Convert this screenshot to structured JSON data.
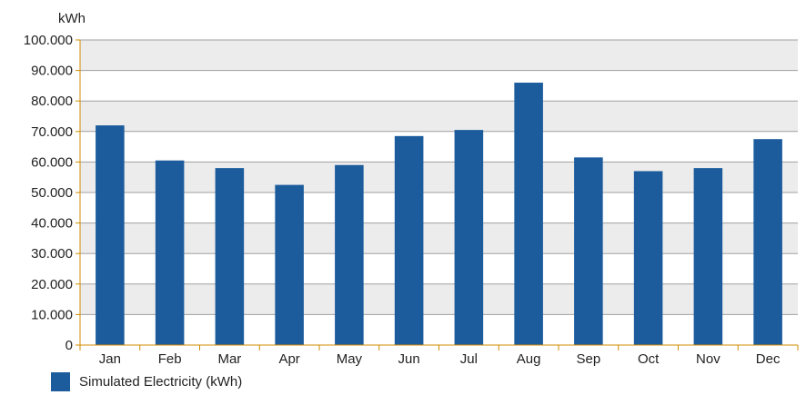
{
  "chart_data": {
    "type": "bar",
    "title": "",
    "xlabel": "",
    "ylabel": "kWh",
    "categories": [
      "Jan",
      "Feb",
      "Mar",
      "Apr",
      "May",
      "Jun",
      "Jul",
      "Aug",
      "Sep",
      "Oct",
      "Nov",
      "Dec"
    ],
    "series": [
      {
        "name": "Simulated Electricity (kWh)",
        "values": [
          72000,
          60500,
          58000,
          52500,
          59000,
          68500,
          70500,
          86000,
          61500,
          57000,
          58000,
          67500
        ],
        "color": "#1c5c9c"
      }
    ],
    "ylim": [
      0,
      100000
    ],
    "yticks": [
      0,
      10000,
      20000,
      30000,
      40000,
      50000,
      60000,
      70000,
      80000,
      90000,
      100000
    ],
    "ytick_labels": [
      "0",
      "10.000",
      "20.000",
      "30.000",
      "40.000",
      "50.000",
      "60.000",
      "70.000",
      "80.000",
      "90.000",
      "100.000"
    ],
    "grid": true,
    "legend_position": "bottom-left",
    "colors": {
      "bar": "#1c5c9c",
      "band_light": "#ffffff",
      "band_dark": "#ececec",
      "gridline": "#a0a0a0",
      "axis": "#d08c00"
    }
  }
}
